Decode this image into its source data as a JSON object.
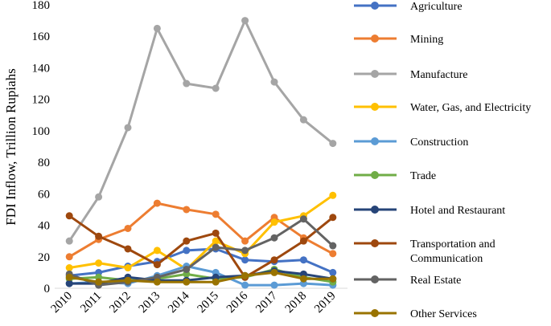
{
  "chart_data": {
    "type": "line",
    "title": "",
    "xlabel": "",
    "ylabel": "FDI Inflow, Trillion Rupiahs",
    "ylim": [
      0,
      180
    ],
    "yticks": [
      0,
      20,
      40,
      60,
      80,
      100,
      120,
      140,
      160,
      180
    ],
    "categories": [
      "2010",
      "2011",
      "2012",
      "2013",
      "2014",
      "2015",
      "2016",
      "2017",
      "2018",
      "2019"
    ],
    "legend_position": "right",
    "series": [
      {
        "name": "Agriculture",
        "color": "#4472C4",
        "values": [
          8,
          10,
          14,
          17,
          24,
          25,
          18,
          17,
          18,
          10
        ]
      },
      {
        "name": "Mining",
        "color": "#ED7D31",
        "values": [
          20,
          31,
          38,
          54,
          50,
          47,
          30,
          45,
          32,
          22
        ]
      },
      {
        "name": "Manufacture",
        "color": "#A5A5A5",
        "values": [
          30,
          58,
          102,
          165,
          130,
          127,
          170,
          131,
          107,
          92
        ]
      },
      {
        "name": "Water, Gas, and Electricity",
        "color": "#FFC000",
        "values": [
          13,
          16,
          13,
          24,
          12,
          30,
          22,
          42,
          46,
          59
        ]
      },
      {
        "name": "Construction",
        "color": "#5B9BD5",
        "values": [
          3,
          4,
          3,
          8,
          14,
          10,
          2,
          2,
          3,
          2
        ]
      },
      {
        "name": "Trade",
        "color": "#70AD47",
        "values": [
          6,
          7,
          5,
          6,
          9,
          6,
          7,
          12,
          7,
          4
        ]
      },
      {
        "name": "Hotel and Restaurant",
        "color": "#264478",
        "values": [
          3,
          3,
          7,
          5,
          5,
          7,
          8,
          11,
          9,
          6
        ]
      },
      {
        "name": "Transportation and Communication",
        "color": "#9E480E",
        "values": [
          46,
          33,
          25,
          15,
          30,
          35,
          7,
          18,
          30,
          45
        ]
      },
      {
        "name": "Real Estate",
        "color": "#636363",
        "values": [
          9,
          2,
          4,
          7,
          12,
          26,
          24,
          32,
          44,
          27
        ]
      },
      {
        "name": "Other Services",
        "color": "#997300",
        "values": [
          7,
          4,
          5,
          4,
          4,
          4,
          8,
          10,
          6,
          6
        ]
      }
    ]
  }
}
